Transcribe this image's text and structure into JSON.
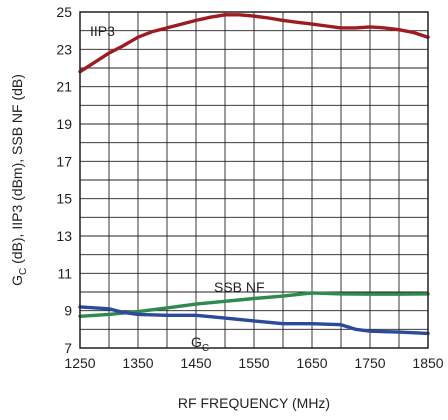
{
  "chart_data": {
    "type": "line",
    "xlabel": "RF FREQUENCY (MHz)",
    "ylabel": "GC (dB), IIP3 (dBm), SSB NF (dB)",
    "ylabel_parts": {
      "main": "G",
      "sub": "C",
      "rest": " (dB), IIP3 (dBm), SSB NF (dB)"
    },
    "xlim": [
      1250,
      1850
    ],
    "ylim": [
      7,
      25
    ],
    "xticks": [
      1250,
      1350,
      1450,
      1550,
      1650,
      1750,
      1850
    ],
    "yticks": [
      7,
      9,
      11,
      13,
      15,
      17,
      19,
      21,
      23,
      25
    ],
    "grid": true,
    "legend": "none (inline labels)",
    "series": [
      {
        "name": "IIP3",
        "label_parts": {
          "main": "IIP3",
          "sub": ""
        },
        "color": "#9e1b20",
        "x": [
          1250,
          1275,
          1300,
          1325,
          1350,
          1375,
          1400,
          1425,
          1450,
          1475,
          1500,
          1525,
          1550,
          1575,
          1600,
          1625,
          1650,
          1675,
          1700,
          1725,
          1750,
          1775,
          1800,
          1825,
          1850
        ],
        "y": [
          21.8,
          22.3,
          22.8,
          23.2,
          23.65,
          23.95,
          24.15,
          24.35,
          24.55,
          24.72,
          24.85,
          24.85,
          24.78,
          24.68,
          24.55,
          24.45,
          24.35,
          24.25,
          24.15,
          24.15,
          24.2,
          24.15,
          24.05,
          23.9,
          23.65
        ]
      },
      {
        "name": "SSB NF",
        "label_parts": {
          "main": "SSB NF",
          "sub": ""
        },
        "color": "#2e8b4e",
        "x": [
          1250,
          1300,
          1350,
          1400,
          1450,
          1500,
          1550,
          1600,
          1650,
          1700,
          1750,
          1800,
          1850
        ],
        "y": [
          8.7,
          8.8,
          8.95,
          9.15,
          9.35,
          9.5,
          9.65,
          9.78,
          9.95,
          9.9,
          9.88,
          9.88,
          9.9
        ]
      },
      {
        "name": "GC",
        "label_parts": {
          "main": "G",
          "sub": "C"
        },
        "color": "#2b4a9b",
        "x": [
          1250,
          1300,
          1325,
          1350,
          1400,
          1450,
          1500,
          1550,
          1600,
          1650,
          1700,
          1725,
          1750,
          1800,
          1850
        ],
        "y": [
          9.2,
          9.1,
          8.9,
          8.8,
          8.75,
          8.75,
          8.6,
          8.45,
          8.3,
          8.3,
          8.25,
          8.0,
          7.9,
          7.85,
          7.78
        ]
      }
    ]
  }
}
